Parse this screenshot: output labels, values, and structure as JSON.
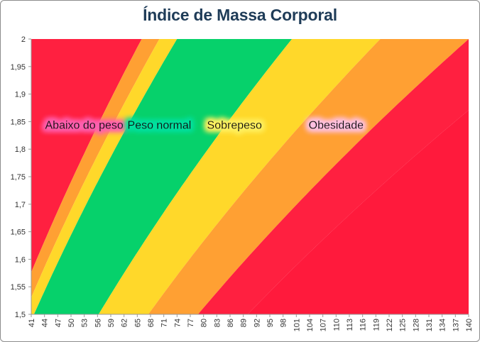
{
  "chart_data": {
    "type": "area",
    "title": "Índice de Massa Corporal",
    "xlabel": "",
    "ylabel": "",
    "xlim": [
      41,
      140
    ],
    "ylim": [
      1.5,
      2
    ],
    "x_ticks": [
      "41",
      "44",
      "47",
      "50",
      "53",
      "56",
      "59",
      "62",
      "65",
      "68",
      "71",
      "74",
      "77",
      "80",
      "83",
      "86",
      "89",
      "92",
      "95",
      "98",
      "101",
      "104",
      "107",
      "110",
      "113",
      "116",
      "119",
      "122",
      "125",
      "128",
      "131",
      "134",
      "137",
      "140"
    ],
    "y_ticks": [
      "1,5",
      "1,55",
      "1,6",
      "1,65",
      "1,7",
      "1,75",
      "1,8",
      "1,85",
      "1,9",
      "1,95",
      "2"
    ],
    "bands": [
      {
        "name": "Abaixo do peso",
        "bmi_min": 0,
        "bmi_max": 16.5,
        "color": "#ff2040"
      },
      {
        "name": "Abaixo do peso",
        "bmi_min": 16.5,
        "bmi_max": 17.5,
        "color": "#ffa033"
      },
      {
        "name": "Abaixo do peso",
        "bmi_min": 17.5,
        "bmi_max": 18.5,
        "color": "#ffd82a"
      },
      {
        "name": "Peso normal",
        "bmi_min": 18.5,
        "bmi_max": 25,
        "color": "#06d16b"
      },
      {
        "name": "Sobrepeso",
        "bmi_min": 25,
        "bmi_max": 30,
        "color": "#ffd82a"
      },
      {
        "name": "Obesidade",
        "bmi_min": 30,
        "bmi_max": 35,
        "color": "#ffa033"
      },
      {
        "name": "Obesidade",
        "bmi_min": 35,
        "bmi_max": 40,
        "color": "#ff2040"
      },
      {
        "name": "Obesidade",
        "bmi_min": 40,
        "bmi_max": 100,
        "color": "#ff1a3c"
      }
    ],
    "labels": [
      {
        "text": "Abaixo do peso",
        "x": 53,
        "y": 1.845,
        "glow": "#ff60b0"
      },
      {
        "text": "Peso normal",
        "x": 70,
        "y": 1.845,
        "glow": "#00e0a0"
      },
      {
        "text": "Sobrepeso",
        "x": 87,
        "y": 1.845,
        "glow": "#fff060"
      },
      {
        "text": "Obesidade",
        "x": 110,
        "y": 1.845,
        "glow": "#ffc0e0"
      }
    ]
  }
}
